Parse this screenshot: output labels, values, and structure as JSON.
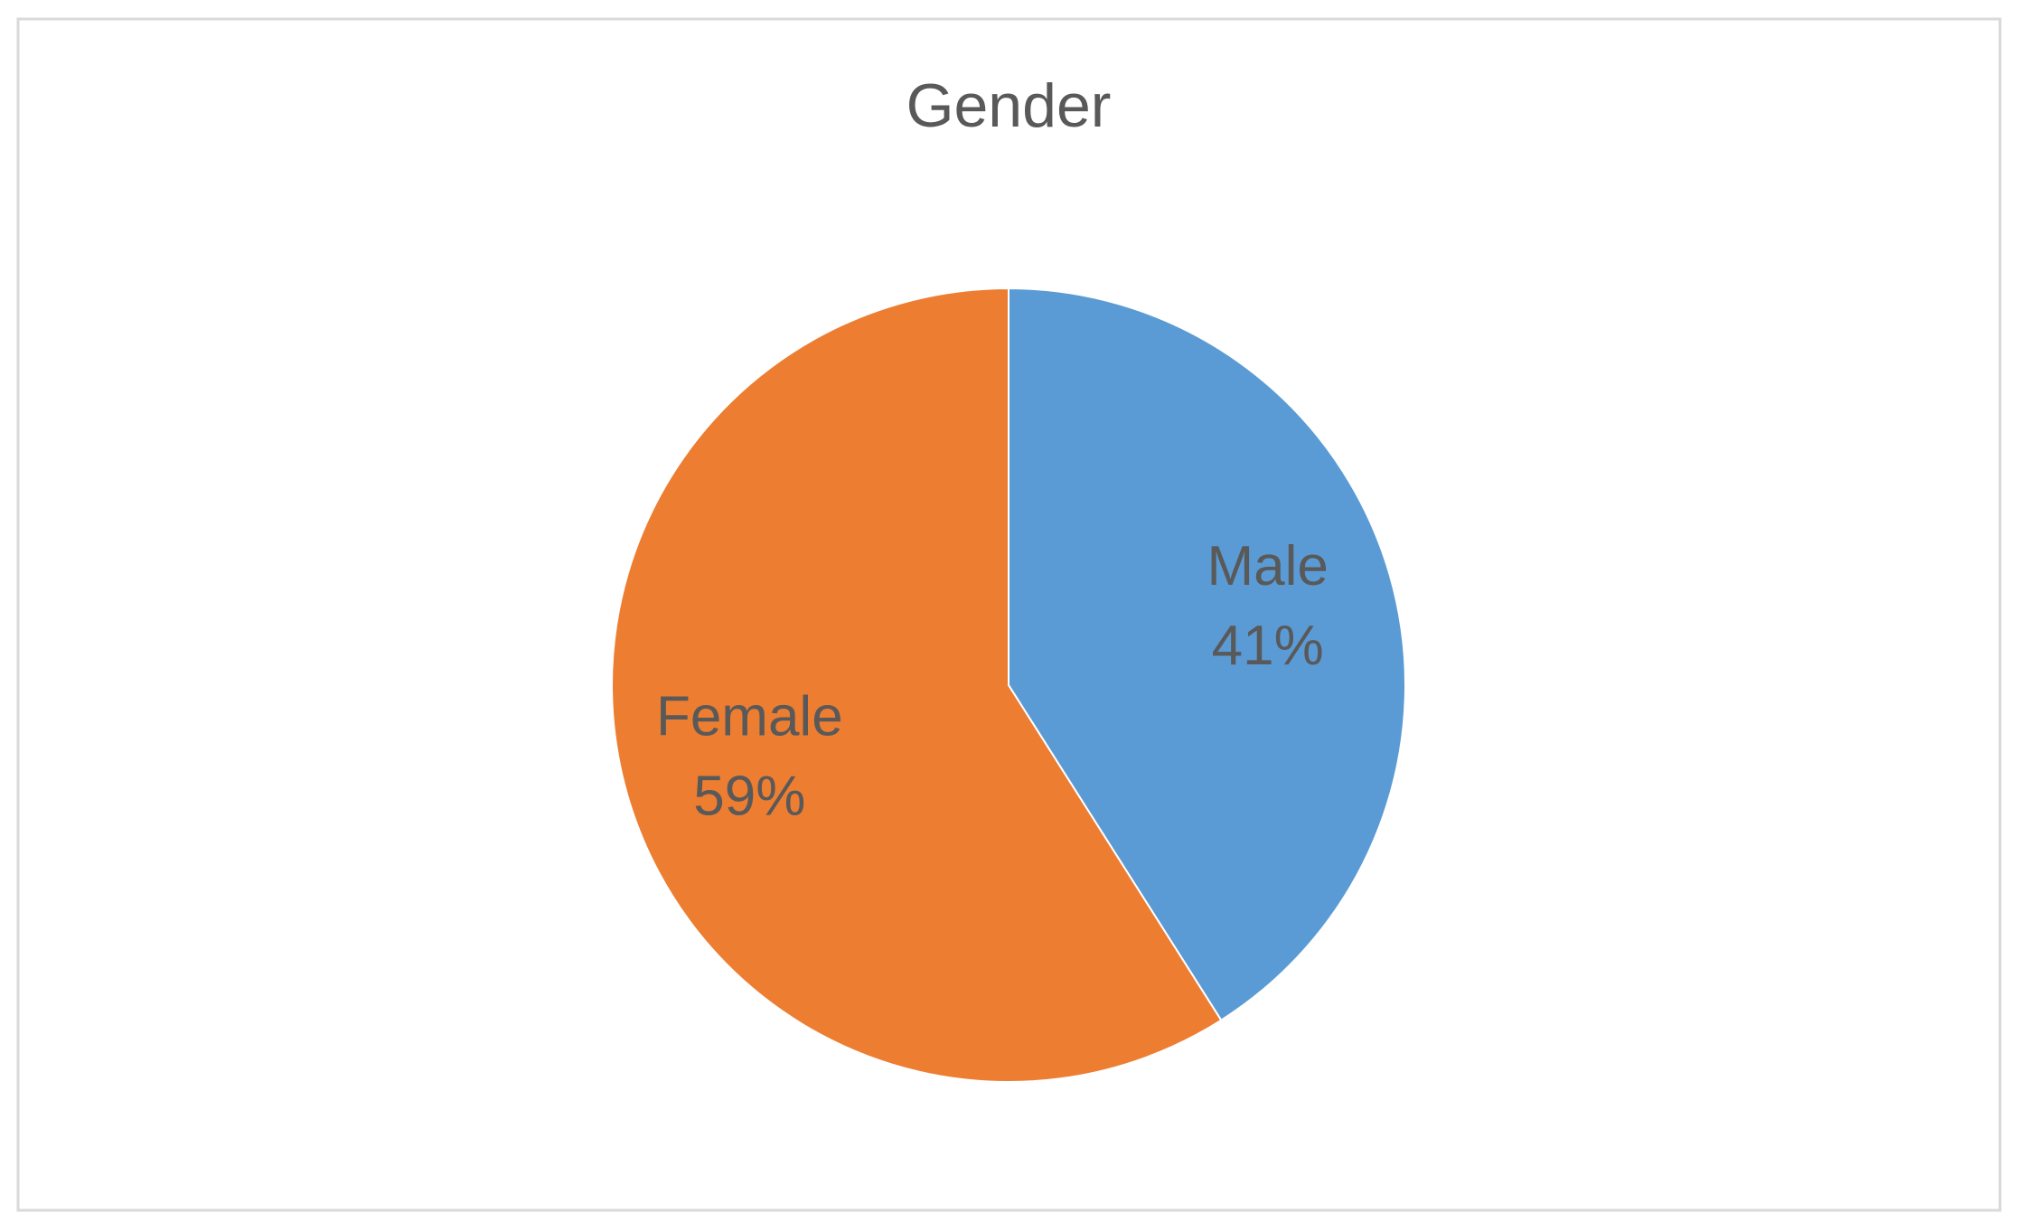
{
  "chart_data": {
    "type": "pie",
    "title": "Gender",
    "categories": [
      "Male",
      "Female"
    ],
    "values": [
      41,
      59
    ],
    "value_labels": [
      "41%",
      "59%"
    ],
    "colors": [
      "#5b9bd5",
      "#ed7d31"
    ]
  }
}
